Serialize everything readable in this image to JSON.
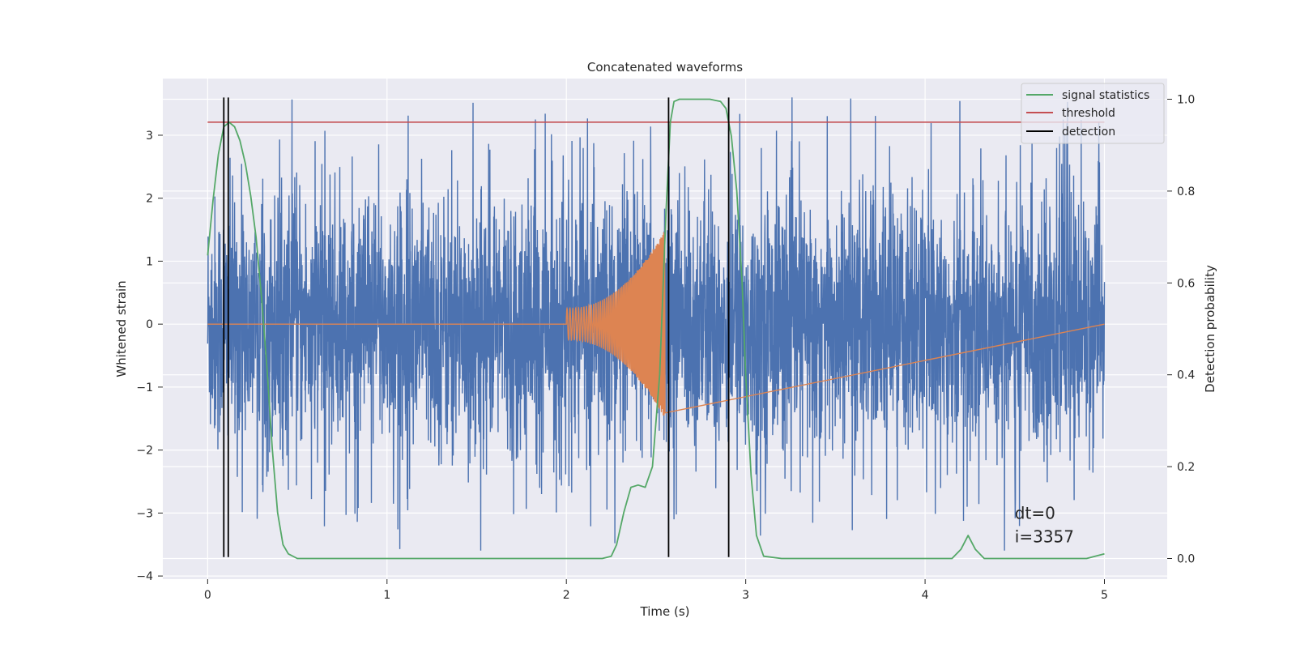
{
  "chart_data": {
    "type": "line",
    "title": "Concatenated waveforms",
    "xlabel": "Time (s)",
    "ylabel_left": "Whitened strain",
    "ylabel_right": "Detection probability",
    "xlim": [
      -0.25,
      5.35
    ],
    "ylim_left": [
      -4.05,
      3.9
    ],
    "ylim_right": [
      -0.045,
      1.045
    ],
    "x_ticks": [
      "0",
      "1",
      "2",
      "3",
      "4",
      "5"
    ],
    "x_tick_values": [
      0,
      1,
      2,
      3,
      4,
      5
    ],
    "y_left_ticks": [
      "−4",
      "−3",
      "−2",
      "−1",
      "0",
      "1",
      "2",
      "3"
    ],
    "y_left_tick_values": [
      -4,
      -3,
      -2,
      -1,
      0,
      1,
      2,
      3
    ],
    "y_right_ticks": [
      "0.0",
      "0.2",
      "0.4",
      "0.6",
      "0.8",
      "1.0"
    ],
    "y_right_tick_values": [
      0,
      0.2,
      0.4,
      0.6,
      0.8,
      1.0
    ],
    "grid": true,
    "legend_placement": "top-right",
    "legend": [
      {
        "name": "signal statistics",
        "color": "#55a868"
      },
      {
        "name": "threshold",
        "color": "#c44e52"
      },
      {
        "name": "detection",
        "color": "#000000"
      }
    ],
    "series": [
      {
        "name": "whitened strain",
        "axis": "left",
        "color": "#4c72b0",
        "kind": "noise",
        "x_range": [
          0,
          5
        ],
        "amplitude_typical": 1.0,
        "amplitude_max": 3.6
      },
      {
        "name": "injected waveform",
        "axis": "left",
        "color": "#dd8452",
        "kind": "chirp",
        "x_range": [
          2.0,
          2.55
        ],
        "amplitude_start": 0.25,
        "amplitude_end": 1.5
      },
      {
        "name": "signal statistics",
        "axis": "right",
        "color": "#55a868",
        "x": [
          0,
          0.03,
          0.06,
          0.09,
          0.12,
          0.15,
          0.18,
          0.21,
          0.24,
          0.27,
          0.3,
          0.33,
          0.36,
          0.39,
          0.42,
          0.45,
          0.5,
          1.0,
          2.0,
          2.2,
          2.25,
          2.28,
          2.32,
          2.36,
          2.4,
          2.44,
          2.48,
          2.52,
          2.555,
          2.58,
          2.6,
          2.63,
          2.7,
          2.8,
          2.86,
          2.89,
          2.92,
          2.95,
          2.98,
          3.0,
          3.03,
          3.06,
          3.1,
          3.2,
          4.0,
          4.15,
          4.2,
          4.24,
          4.28,
          4.33,
          4.4,
          4.9,
          5.0
        ],
        "y": [
          0.66,
          0.78,
          0.88,
          0.94,
          0.95,
          0.94,
          0.91,
          0.86,
          0.79,
          0.7,
          0.57,
          0.42,
          0.24,
          0.1,
          0.03,
          0.01,
          0.0,
          0.0,
          0.0,
          0.0,
          0.005,
          0.03,
          0.1,
          0.155,
          0.16,
          0.155,
          0.2,
          0.4,
          0.75,
          0.95,
          0.995,
          1.0,
          1.0,
          1.0,
          0.995,
          0.98,
          0.92,
          0.8,
          0.6,
          0.4,
          0.18,
          0.05,
          0.005,
          0.0,
          0.0,
          0.0,
          0.02,
          0.05,
          0.02,
          0.0,
          0.0,
          0.0,
          0.01
        ]
      },
      {
        "name": "threshold",
        "axis": "right",
        "color": "#c44e52",
        "x": [
          0,
          5
        ],
        "y": [
          0.95,
          0.95
        ]
      }
    ],
    "detections": [
      0.09,
      0.115,
      2.57,
      2.905
    ],
    "detection_range": [
      -3.7,
      3.6
    ],
    "annotation": {
      "lines": [
        "dt=0",
        "i=3357"
      ],
      "x": 4.5,
      "y": -3.0
    }
  }
}
